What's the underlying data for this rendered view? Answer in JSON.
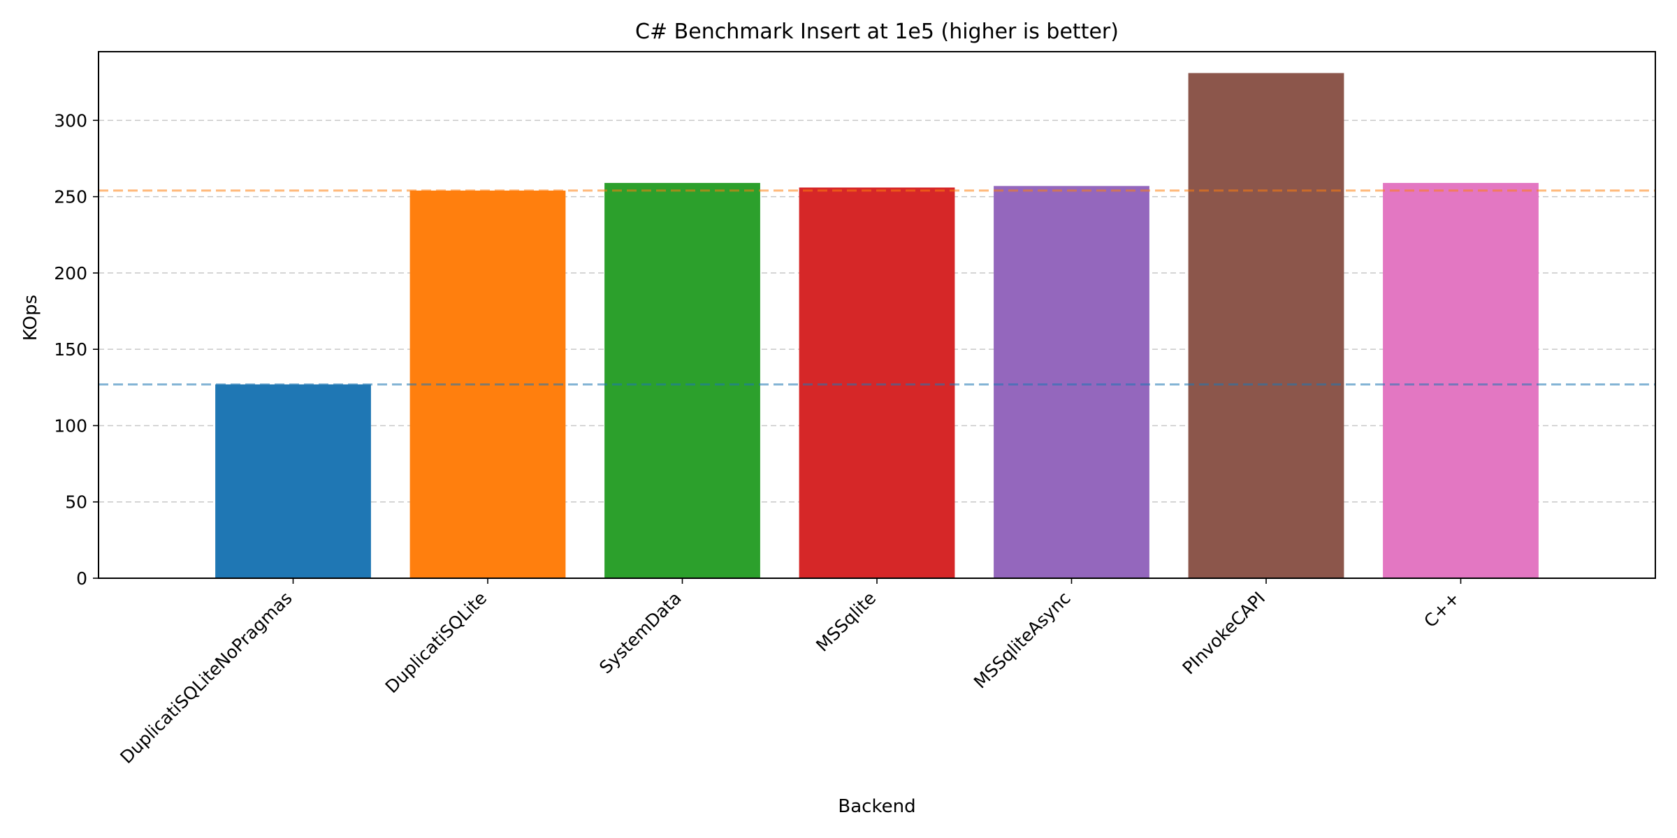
{
  "chart_data": {
    "type": "bar",
    "title": "C# Benchmark Insert at 1e5 (higher is better)",
    "xlabel": "Backend",
    "ylabel": "KOps",
    "categories": [
      "DuplicatiSQLiteNoPragmas",
      "DuplicatiSQLite",
      "SystemData",
      "MSSqlite",
      "MSSqliteAsync",
      "PInvokeCAPI",
      "C++"
    ],
    "values": [
      127,
      254,
      259,
      256,
      257,
      331,
      259
    ],
    "colors": [
      "#1f77b4",
      "#ff7f0e",
      "#2ca02c",
      "#d62728",
      "#9467bd",
      "#8c564b",
      "#e377c2"
    ],
    "ylim": [
      0,
      345
    ],
    "yticks": [
      0,
      50,
      100,
      150,
      200,
      250,
      300
    ],
    "grid": true,
    "reference_lines": [
      {
        "value": 127,
        "color": "#1f77b4"
      },
      {
        "value": 254,
        "color": "#ff7f0e"
      }
    ]
  }
}
